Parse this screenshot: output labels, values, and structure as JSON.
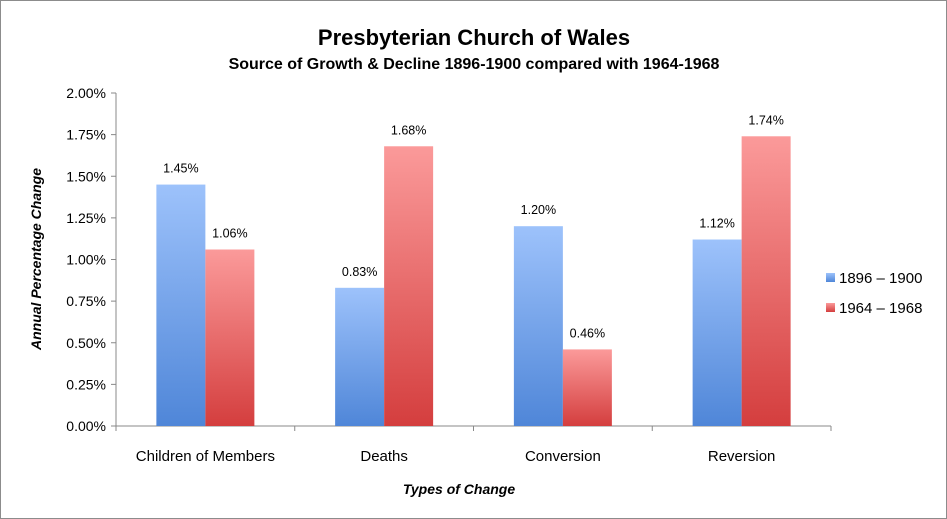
{
  "chart_data": {
    "type": "bar",
    "title": "Presbyterian Church of Wales",
    "subtitle": "Source of Growth & Decline 1896-1900 compared with 1964-1968",
    "xlabel": "Types of Change",
    "ylabel": "Annual Percentage Change",
    "ylim": [
      0,
      2.0
    ],
    "yticks": [
      "0.00%",
      "0.25%",
      "0.50%",
      "0.75%",
      "1.00%",
      "1.25%",
      "1.50%",
      "1.75%",
      "2.00%"
    ],
    "categories": [
      "Children of Members",
      "Deaths",
      "Conversion",
      "Reversion"
    ],
    "series": [
      {
        "name": "1896 – 1900",
        "values": [
          1.45,
          0.83,
          1.2,
          1.12
        ],
        "labels": [
          "1.45%",
          "0.83%",
          "1.20%",
          "1.12%"
        ],
        "color": "#4f86d8",
        "color_light": "#9dc2fb"
      },
      {
        "name": "1964 – 1968",
        "values": [
          1.06,
          1.68,
          0.46,
          1.74
        ],
        "labels": [
          "1.06%",
          "1.68%",
          "0.46%",
          "1.74%"
        ],
        "color": "#d43e3e",
        "color_light": "#fb9a9a"
      }
    ],
    "grid": false,
    "legend": "right"
  }
}
